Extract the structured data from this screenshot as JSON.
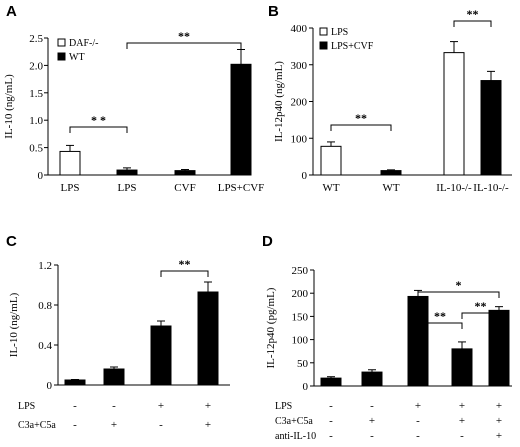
{
  "chart_data": [
    {
      "panel": "A",
      "type": "bar",
      "ylabel": "IL-10 (ng/mL)",
      "ylim": [
        0,
        2.5
      ],
      "yticks": [
        "0",
        "0.5",
        "1.0",
        "1.5",
        "2.0",
        "2.5"
      ],
      "categories": [
        "LPS",
        "LPS",
        "CVF",
        "LPS+CVF"
      ],
      "values": [
        0.43,
        0.09,
        0.08,
        2.02
      ],
      "errors": [
        0.11,
        0.04,
        0.02,
        0.27
      ],
      "fills": [
        "white",
        "black",
        "black",
        "black"
      ],
      "legend": [
        {
          "label": "DAF-/-",
          "fill": "white"
        },
        {
          "label": "WT",
          "fill": "black"
        }
      ],
      "significance": [
        {
          "from": 0,
          "to": 1,
          "label": "* *"
        },
        {
          "from": 1,
          "to": 3,
          "label": "**"
        }
      ]
    },
    {
      "panel": "B",
      "type": "bar",
      "ylabel": "IL-12p40 (ng/mL)",
      "ylim": [
        0,
        400
      ],
      "yticks": [
        "0",
        "100",
        "200",
        "300",
        "400"
      ],
      "categories": [
        "WT",
        "WT",
        "IL-10-/-",
        "IL-10-/-"
      ],
      "values": [
        78,
        12,
        333,
        257
      ],
      "errors": [
        12,
        2,
        30,
        25
      ],
      "fills": [
        "white",
        "black",
        "white",
        "black"
      ],
      "legend": [
        {
          "label": "LPS",
          "fill": "white"
        },
        {
          "label": "LPS+CVF",
          "fill": "black"
        }
      ],
      "significance": [
        {
          "from": 0,
          "to": 1,
          "label": "**"
        },
        {
          "from": 2,
          "to": 3,
          "label": "**"
        }
      ]
    },
    {
      "panel": "C",
      "type": "bar",
      "ylabel": "IL-10 (ng/mL)",
      "ylim": [
        0,
        1.2
      ],
      "yticks": [
        "0",
        "0.4",
        "0.8",
        "1.2"
      ],
      "values": [
        0.05,
        0.16,
        0.59,
        0.93
      ],
      "errors": [
        0.005,
        0.02,
        0.05,
        0.1
      ],
      "fills": [
        "black",
        "black",
        "black",
        "black"
      ],
      "rows": [
        {
          "label": "LPS",
          "signs": [
            "-",
            "-",
            "+",
            "+"
          ]
        },
        {
          "label": "C3a+C5a",
          "signs": [
            "-",
            "+",
            "-",
            "+"
          ]
        }
      ],
      "significance": [
        {
          "from": 2,
          "to": 3,
          "label": "**"
        }
      ]
    },
    {
      "panel": "D",
      "type": "bar",
      "ylabel": "IL-12p40 (pg/mL)",
      "ylim": [
        0,
        250
      ],
      "yticks": [
        "0",
        "50",
        "100",
        "150",
        "200",
        "250"
      ],
      "values": [
        17,
        30,
        193,
        80,
        163
      ],
      "errors": [
        3,
        5,
        13,
        15,
        8
      ],
      "fills": [
        "black",
        "black",
        "black",
        "black",
        "black"
      ],
      "rows": [
        {
          "label": "LPS",
          "signs": [
            "-",
            "-",
            "+",
            "+",
            "+"
          ]
        },
        {
          "label": "C3a+C5a",
          "signs": [
            "-",
            "+",
            "-",
            "+",
            "+"
          ]
        },
        {
          "label": "anti-IL-10",
          "signs": [
            "-",
            "-",
            "-",
            "-",
            "+"
          ]
        }
      ],
      "significance": [
        {
          "from": 2,
          "to": 4,
          "label": "*"
        },
        {
          "from": 2,
          "to": 3,
          "label": "**"
        },
        {
          "from": 3,
          "to": 4,
          "label": "**"
        }
      ]
    }
  ]
}
